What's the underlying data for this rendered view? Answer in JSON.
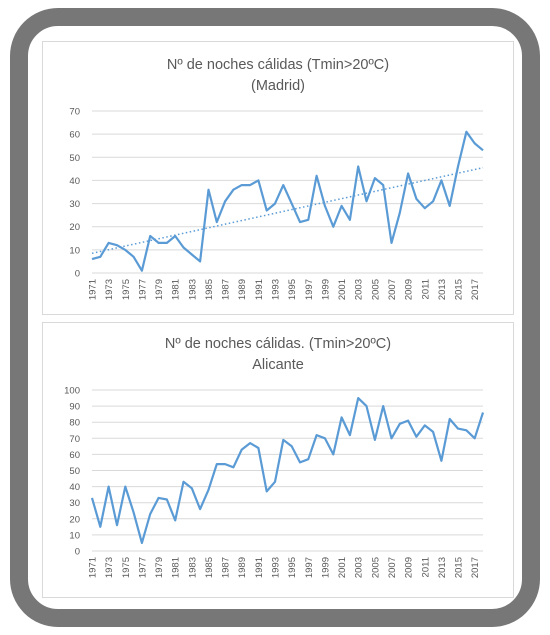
{
  "colors": {
    "frame": "#777777",
    "line": "#5b9bd5",
    "grid": "#d9d9d9",
    "text": "#595959"
  },
  "chart_data": [
    {
      "type": "line",
      "title": "Nº de noches cálidas (Tmin>20ºC)",
      "subtitle": "(Madrid)",
      "ylim": [
        0,
        70
      ],
      "yticks": [
        0,
        10,
        20,
        30,
        40,
        50,
        60,
        70
      ],
      "grid": true,
      "x": [
        1971,
        1972,
        1973,
        1974,
        1975,
        1976,
        1977,
        1978,
        1979,
        1980,
        1981,
        1982,
        1983,
        1984,
        1985,
        1986,
        1987,
        1988,
        1989,
        1990,
        1991,
        1992,
        1993,
        1994,
        1995,
        1996,
        1997,
        1998,
        1999,
        2000,
        2001,
        2002,
        2003,
        2004,
        2005,
        2006,
        2007,
        2008,
        2009,
        2010,
        2011,
        2012,
        2013,
        2014,
        2015,
        2016,
        2017,
        2018
      ],
      "xtick_labels": [
        "1971",
        "1973",
        "1975",
        "1977",
        "1979",
        "1981",
        "1983",
        "1985",
        "1987",
        "1989",
        "1991",
        "1993",
        "1995",
        "1997",
        "1999",
        "2001",
        "2003",
        "2005",
        "2007",
        "2009",
        "2011",
        "2013",
        "2015",
        "2017"
      ],
      "series": [
        {
          "values": [
            6,
            7,
            13,
            12,
            10,
            7,
            1,
            16,
            13,
            13,
            16,
            11,
            8,
            5,
            36,
            22,
            31,
            36,
            38,
            38,
            40,
            27,
            30,
            38,
            30,
            22,
            23,
            42,
            29,
            20,
            29,
            23,
            46,
            31,
            41,
            38,
            13,
            26,
            43,
            32,
            28,
            31,
            40,
            29,
            46,
            61,
            56,
            53
          ]
        }
      ],
      "trendline": {
        "style": "dotted",
        "linear": true,
        "start": 8.5,
        "end": 45.5
      }
    },
    {
      "type": "line",
      "title": "Nº de noches cálidas. (Tmin>20ºC)",
      "subtitle": "Alicante",
      "ylim": [
        0,
        100
      ],
      "yticks": [
        0,
        10,
        20,
        30,
        40,
        50,
        60,
        70,
        80,
        90,
        100
      ],
      "grid": true,
      "x": [
        1971,
        1972,
        1973,
        1974,
        1975,
        1976,
        1977,
        1978,
        1979,
        1980,
        1981,
        1982,
        1983,
        1984,
        1985,
        1986,
        1987,
        1988,
        1989,
        1990,
        1991,
        1992,
        1993,
        1994,
        1995,
        1996,
        1997,
        1998,
        1999,
        2000,
        2001,
        2002,
        2003,
        2004,
        2005,
        2006,
        2007,
        2008,
        2009,
        2010,
        2011,
        2012,
        2013,
        2014,
        2015,
        2016,
        2017,
        2018
      ],
      "xtick_labels": [
        "1971",
        "1973",
        "1975",
        "1977",
        "1979",
        "1981",
        "1983",
        "1985",
        "1987",
        "1989",
        "1991",
        "1993",
        "1995",
        "1997",
        "1999",
        "2001",
        "2003",
        "2005",
        "2007",
        "2009",
        "2011",
        "2013",
        "2015",
        "2017"
      ],
      "series": [
        {
          "values": [
            33,
            15,
            40,
            16,
            40,
            24,
            5,
            23,
            33,
            32,
            19,
            43,
            39,
            26,
            38,
            54,
            54,
            52,
            63,
            67,
            64,
            37,
            43,
            69,
            65,
            55,
            57,
            72,
            70,
            60,
            83,
            72,
            95,
            90,
            69,
            90,
            70,
            79,
            81,
            71,
            78,
            74,
            56,
            82,
            76,
            75,
            70,
            86
          ]
        }
      ]
    }
  ]
}
